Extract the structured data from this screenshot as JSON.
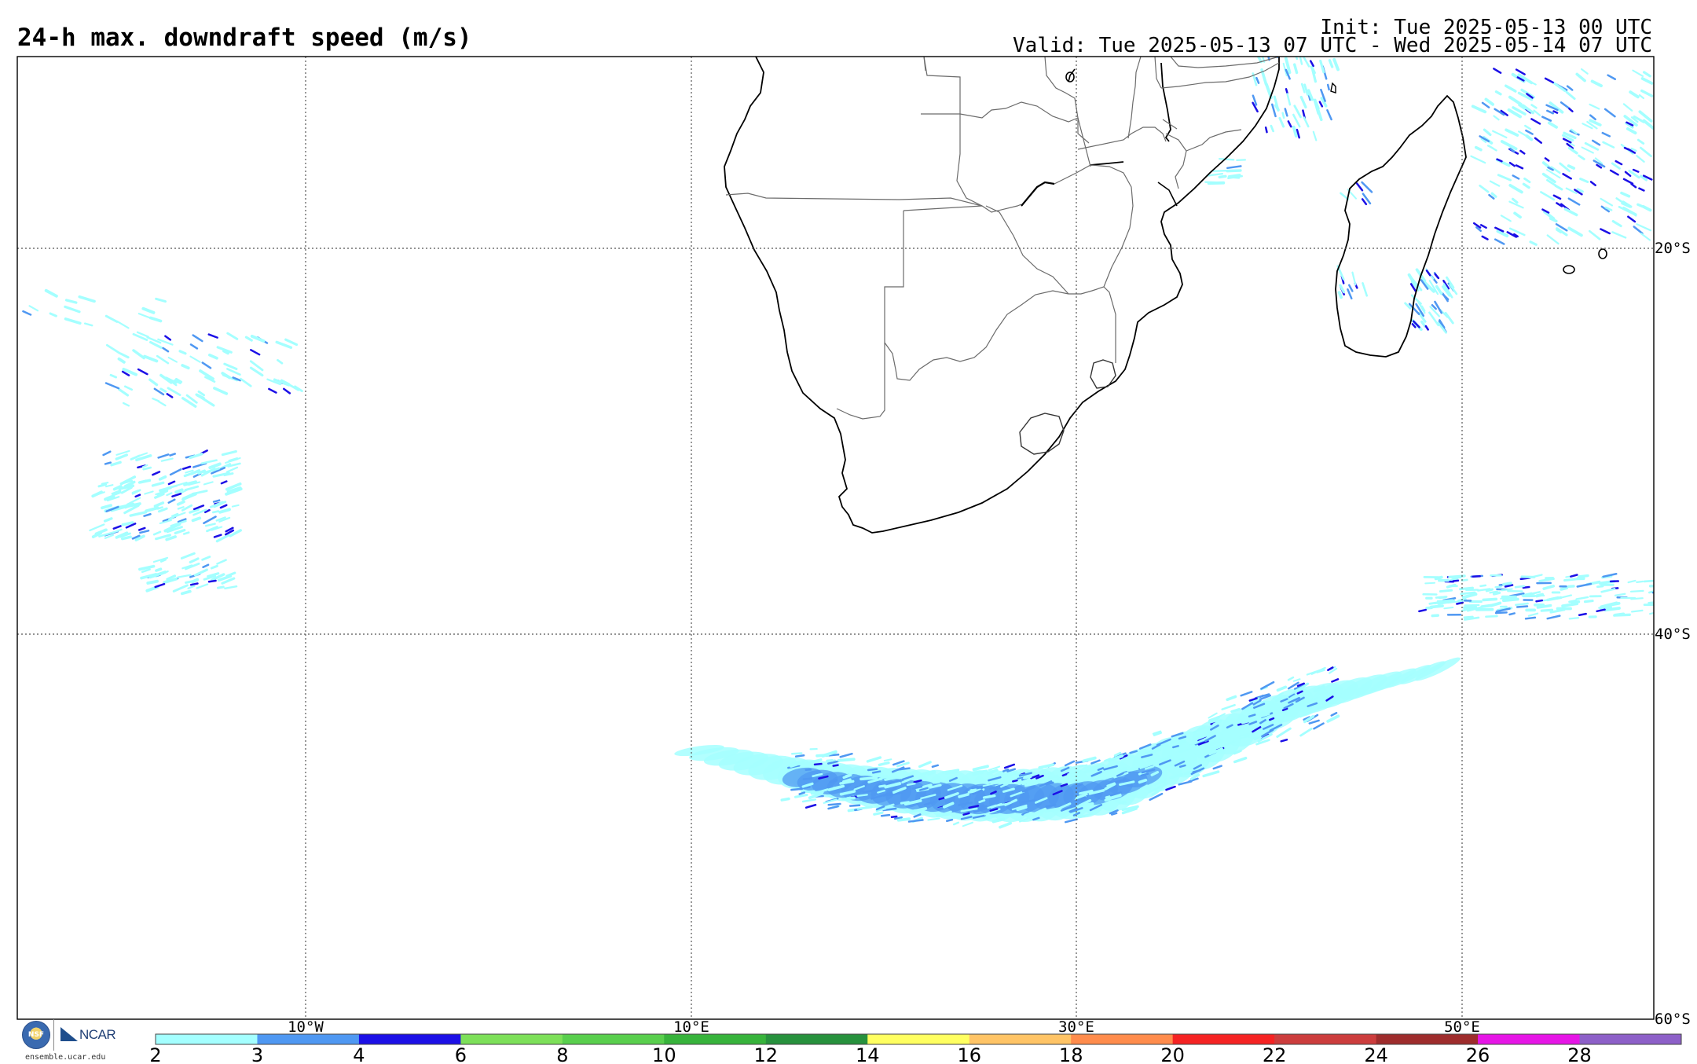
{
  "header": {
    "title": "24-h max. downdraft speed (m/s)",
    "init": "Init: Tue 2025-05-13 00 UTC",
    "valid": "Valid: Tue 2025-05-13 07 UTC - Wed 2025-05-14 07 UTC"
  },
  "map": {
    "longitude_labels": [
      "10°W",
      "10°E",
      "30°E",
      "50°E"
    ],
    "latitude_labels": [
      "20°S",
      "40°S",
      "60°S"
    ],
    "gridline_style": "dotted",
    "coastline_color": "#000000",
    "border_color": "#6b6b6b"
  },
  "colorbar": {
    "tick_labels": [
      "2",
      "3",
      "4",
      "6",
      "8",
      "10",
      "12",
      "14",
      "16",
      "18",
      "20",
      "22",
      "24",
      "26",
      "28"
    ],
    "colors": [
      "#a4ffff",
      "#4f98f2",
      "#1c10e6",
      "#7de059",
      "#59cf4d",
      "#37b33b",
      "#27913d",
      "#ffff60",
      "#ffc466",
      "#ff8c4c",
      "#f52323",
      "#cc3d3d",
      "#9e2c2c",
      "#e615e6",
      "#8d60c8"
    ]
  },
  "logos": {
    "nsf_seal": "NSF",
    "ncar": "NCAR",
    "url": "ensemble.ucar.edu"
  }
}
